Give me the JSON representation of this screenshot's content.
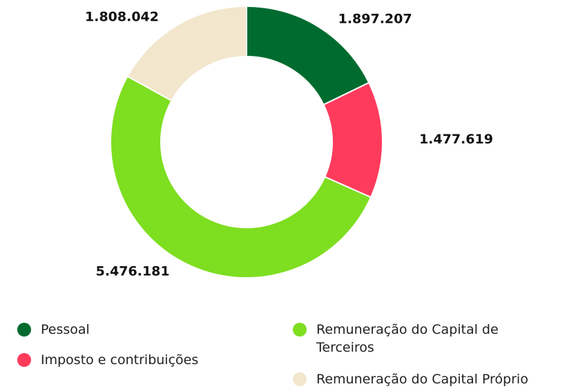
{
  "chart_data": {
    "type": "donut",
    "categories": [
      "Pessoal",
      "Imposto e contribuições",
      "Remuneração do Capital de Terceiros",
      "Remuneração do Capital Próprio"
    ],
    "values": [
      1897207,
      1477619,
      5476181,
      1808042
    ],
    "value_labels": [
      "1.897.207",
      "1.477.619",
      "5.476.181",
      "1.808.042"
    ],
    "colors": [
      "#006b2f",
      "#ff3b5c",
      "#7ede20",
      "#f2e6cc"
    ]
  }
}
